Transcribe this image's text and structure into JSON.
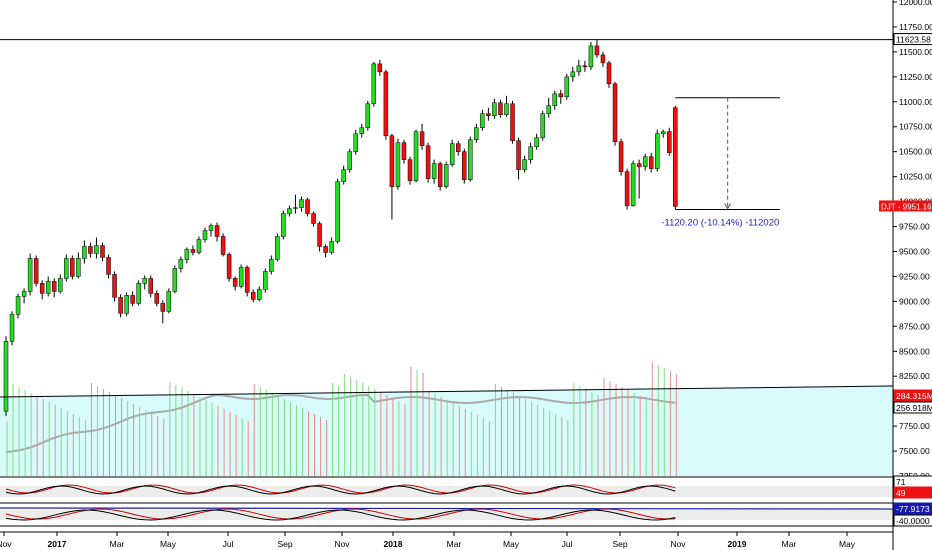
{
  "chart_data": {
    "type": "candlestick",
    "symbol": "DJT",
    "price_axis": {
      "ylim": [
        7250,
        12000
      ],
      "tick_labels": [
        "12000.00",
        "11750.00",
        "11500.00",
        "11250.00",
        "11000.00",
        "10750.00",
        "10500.00",
        "10250.00",
        "10000.00",
        "9750.00",
        "9500.00",
        "9250.00",
        "9000.00",
        "8750.00",
        "8500.00",
        "8250.00",
        "8000.00",
        "7750.00",
        "7500.00",
        "7250.00"
      ],
      "tick_values": [
        12000,
        11750,
        11500,
        11250,
        11000,
        10750,
        10500,
        10250,
        10000,
        9750,
        9500,
        9250,
        9000,
        8750,
        8500,
        8250,
        8000,
        7750,
        7500,
        7250
      ]
    },
    "time_axis": {
      "labels": [
        "Nov",
        "2017",
        "Mar",
        "May",
        "Jul",
        "Sep",
        "Nov",
        "2018",
        "Mar",
        "May",
        "Jul",
        "Sep",
        "Nov",
        "2019",
        "Mar",
        "May"
      ],
      "bold": [
        false,
        true,
        false,
        false,
        false,
        false,
        false,
        true,
        false,
        false,
        false,
        false,
        false,
        true,
        false,
        false
      ]
    },
    "resistance_level": 11623.58,
    "resistance_label": "11623.58",
    "last_price_label": "DJT - 9951.16",
    "last_price": 9951.16,
    "volume_labels": [
      "284.315M",
      "256.918M"
    ],
    "measure": {
      "high": 11040,
      "low": 9920,
      "label": "-1120.20 (-10.14%) -112020"
    },
    "osc1": {
      "labels": [
        "71",
        "49"
      ]
    },
    "osc2": {
      "labels": [
        "-77.9173",
        "-40.0000"
      ]
    },
    "colors": {
      "up": "#22dd22",
      "down": "#ee1111",
      "volume_bg": "#d8fbfb",
      "resistance": "#000000",
      "ma": "#aaaaaa",
      "measure_text": "#2222bb"
    },
    "candles": [
      [
        7900,
        8600,
        7850,
        8650
      ],
      [
        8600,
        8870,
        8560,
        8900
      ],
      [
        8870,
        9050,
        8830,
        9080
      ],
      [
        9050,
        9100,
        8980,
        9130
      ],
      [
        9100,
        9430,
        9060,
        9480
      ],
      [
        9430,
        9180,
        9150,
        9460
      ],
      [
        9180,
        9080,
        9020,
        9210
      ],
      [
        9080,
        9200,
        9050,
        9250
      ],
      [
        9200,
        9100,
        9040,
        9230
      ],
      [
        9100,
        9230,
        9080,
        9270
      ],
      [
        9230,
        9430,
        9200,
        9470
      ],
      [
        9430,
        9250,
        9220,
        9460
      ],
      [
        9250,
        9430,
        9230,
        9490
      ],
      [
        9430,
        9550,
        9380,
        9610
      ],
      [
        9550,
        9480,
        9440,
        9590
      ],
      [
        9480,
        9560,
        9430,
        9640
      ],
      [
        9560,
        9440,
        9400,
        9590
      ],
      [
        9440,
        9270,
        9230,
        9470
      ],
      [
        9270,
        9040,
        9000,
        9300
      ],
      [
        9040,
        8880,
        8840,
        9070
      ],
      [
        8880,
        9060,
        8850,
        9090
      ],
      [
        9060,
        8980,
        8950,
        9100
      ],
      [
        8980,
        9180,
        8960,
        9210
      ],
      [
        9180,
        9230,
        9120,
        9260
      ],
      [
        9230,
        9080,
        9040,
        9260
      ],
      [
        9080,
        8980,
        8950,
        9110
      ],
      [
        8980,
        8900,
        8780,
        9010
      ],
      [
        8900,
        9100,
        8880,
        9130
      ],
      [
        9100,
        9330,
        9080,
        9360
      ],
      [
        9330,
        9420,
        9290,
        9450
      ],
      [
        9420,
        9520,
        9380,
        9540
      ],
      [
        9520,
        9490,
        9460,
        9560
      ],
      [
        9490,
        9620,
        9470,
        9650
      ],
      [
        9620,
        9710,
        9590,
        9740
      ],
      [
        9710,
        9760,
        9650,
        9780
      ],
      [
        9760,
        9650,
        9600,
        9790
      ],
      [
        9650,
        9470,
        9450,
        9680
      ],
      [
        9470,
        9230,
        9200,
        9490
      ],
      [
        9230,
        9150,
        9110,
        9250
      ],
      [
        9150,
        9340,
        9130,
        9370
      ],
      [
        9340,
        9090,
        9050,
        9360
      ],
      [
        9090,
        9020,
        8990,
        9120
      ],
      [
        9020,
        9120,
        9000,
        9150
      ],
      [
        9120,
        9300,
        9090,
        9330
      ],
      [
        9300,
        9420,
        9270,
        9460
      ],
      [
        9420,
        9650,
        9400,
        9680
      ],
      [
        9650,
        9880,
        9620,
        9910
      ],
      [
        9880,
        9930,
        9850,
        9960
      ],
      [
        9930,
        9940,
        9880,
        10070
      ],
      [
        9940,
        10020,
        9900,
        10050
      ],
      [
        10020,
        9880,
        9850,
        10040
      ],
      [
        9880,
        9780,
        9750,
        9900
      ],
      [
        9780,
        9550,
        9500,
        9800
      ],
      [
        9550,
        9490,
        9440,
        9570
      ],
      [
        9490,
        9600,
        9470,
        9640
      ],
      [
        9600,
        10200,
        9580,
        10230
      ],
      [
        10200,
        10320,
        10170,
        10360
      ],
      [
        10320,
        10500,
        10290,
        10530
      ],
      [
        10500,
        10680,
        10470,
        10720
      ],
      [
        10680,
        10740,
        10640,
        10780
      ],
      [
        10740,
        10980,
        10710,
        11010
      ],
      [
        10980,
        11380,
        10950,
        11400
      ],
      [
        11380,
        11300,
        11260,
        11420
      ],
      [
        11300,
        10660,
        10620,
        11320
      ],
      [
        10660,
        10150,
        9820,
        10680
      ],
      [
        10150,
        10590,
        10120,
        10630
      ],
      [
        10590,
        10420,
        10380,
        10620
      ],
      [
        10420,
        10210,
        10170,
        10450
      ],
      [
        10210,
        10700,
        10190,
        10720
      ],
      [
        10700,
        10560,
        10520,
        10780
      ],
      [
        10560,
        10230,
        10190,
        10590
      ],
      [
        10230,
        10380,
        10180,
        10420
      ],
      [
        10380,
        10150,
        10110,
        10400
      ],
      [
        10150,
        10370,
        10130,
        10400
      ],
      [
        10370,
        10580,
        10350,
        10620
      ],
      [
        10580,
        10500,
        10460,
        10610
      ],
      [
        10500,
        10220,
        10180,
        10530
      ],
      [
        10220,
        10620,
        10200,
        10650
      ],
      [
        10620,
        10740,
        10590,
        10780
      ],
      [
        10740,
        10880,
        10710,
        10920
      ],
      [
        10880,
        10860,
        10810,
        10940
      ],
      [
        10860,
        10990,
        10830,
        11030
      ],
      [
        10990,
        10870,
        10840,
        11020
      ],
      [
        10870,
        10980,
        10850,
        11060
      ],
      [
        10980,
        10610,
        10580,
        11010
      ],
      [
        10610,
        10320,
        10220,
        10640
      ],
      [
        10320,
        10420,
        10290,
        10460
      ],
      [
        10420,
        10550,
        10380,
        10590
      ],
      [
        10550,
        10640,
        10520,
        10680
      ],
      [
        10640,
        10880,
        10610,
        10910
      ],
      [
        10880,
        10960,
        10840,
        11040
      ],
      [
        10960,
        11080,
        10920,
        11110
      ],
      [
        11080,
        11050,
        10980,
        11120
      ],
      [
        11050,
        11250,
        11020,
        11280
      ],
      [
        11250,
        11300,
        11200,
        11350
      ],
      [
        11300,
        11360,
        11260,
        11420
      ],
      [
        11360,
        11350,
        11300,
        11410
      ],
      [
        11350,
        11560,
        11320,
        11600
      ],
      [
        11560,
        11470,
        11440,
        11620
      ],
      [
        11470,
        11390,
        11350,
        11500
      ],
      [
        11390,
        11180,
        11140,
        11410
      ],
      [
        11180,
        10600,
        10560,
        11200
      ],
      [
        10600,
        10300,
        10260,
        10630
      ],
      [
        10300,
        9960,
        9920,
        10330
      ],
      [
        9960,
        10380,
        9950,
        10410
      ],
      [
        10380,
        10350,
        10030,
        10420
      ],
      [
        10350,
        10450,
        10310,
        10480
      ],
      [
        10450,
        10330,
        10290,
        10490
      ],
      [
        10330,
        10680,
        10300,
        10720
      ],
      [
        10680,
        10700,
        10640,
        10720
      ],
      [
        10700,
        10490,
        10460,
        10740
      ],
      [
        10940,
        9951.16,
        9920,
        10960
      ]
    ]
  }
}
